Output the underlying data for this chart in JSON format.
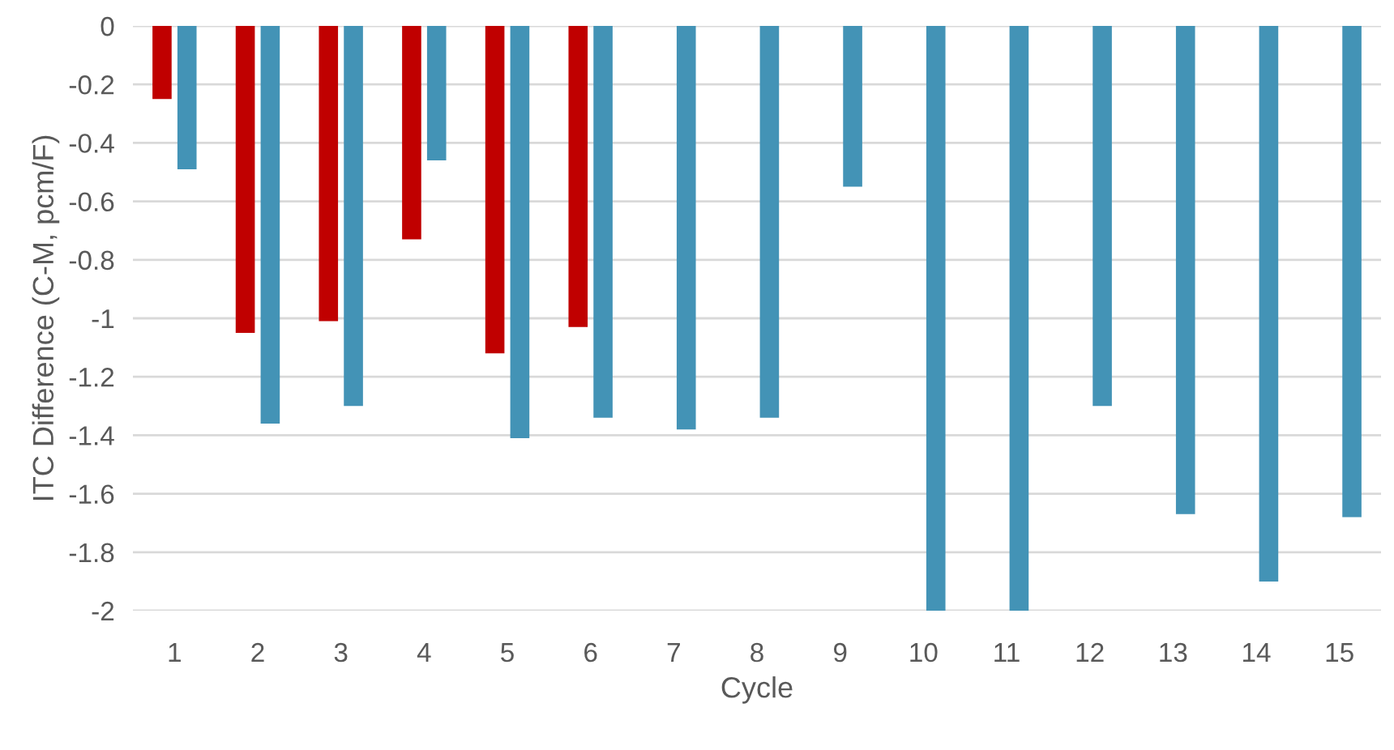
{
  "chart_data": {
    "type": "bar",
    "xlabel": "Cycle",
    "ylabel": "ITC Difference (C-M, pcm/F)",
    "categories": [
      "1",
      "2",
      "3",
      "4",
      "5",
      "6",
      "7",
      "8",
      "9",
      "10",
      "11",
      "12",
      "13",
      "14",
      "15"
    ],
    "series": [
      {
        "color": "#c00000",
        "values": [
          -0.25,
          -1.05,
          -1.01,
          -0.73,
          -1.12,
          -1.03,
          null,
          null,
          null,
          null,
          null,
          null,
          null,
          null,
          null
        ]
      },
      {
        "color": "#4393b6",
        "values": [
          -0.49,
          -1.36,
          -1.3,
          -0.46,
          -1.41,
          -1.34,
          -1.38,
          -1.34,
          -0.55,
          -2,
          -2,
          -1.3,
          -1.67,
          -1.9,
          -1.68
        ]
      }
    ],
    "ylim": [
      -2,
      0
    ],
    "yticks": [
      0,
      -0.2,
      -0.4,
      -0.6,
      -0.8,
      -1,
      -1.2,
      -1.4,
      -1.6,
      -1.8,
      -2
    ],
    "grid": "y"
  }
}
